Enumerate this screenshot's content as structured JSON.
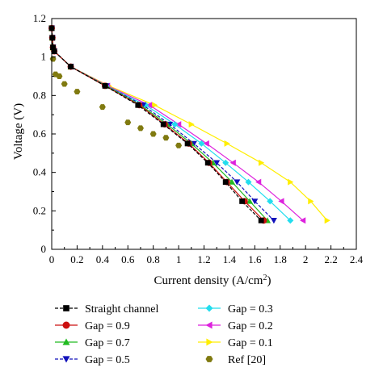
{
  "chart_data": {
    "type": "line",
    "xlabel": "Current density (A/cm",
    "xlabel_sup": "2",
    "xlabel_end": ")",
    "ylabel": "Voltage (V)",
    "xlim": [
      0,
      2.4
    ],
    "ylim": [
      0,
      1.2
    ],
    "xticks": [
      "0",
      "0.2",
      "0.4",
      "0.6",
      "0.8",
      "1",
      "1.2",
      "1.4",
      "1.6",
      "1.8",
      "2",
      "2.2",
      "2.4"
    ],
    "yticks": [
      "0",
      "0.2",
      "0.4",
      "0.6",
      "0.8",
      "1",
      "1.2"
    ],
    "grid": false,
    "legend_position": "below",
    "series": [
      {
        "name": "Straight channel",
        "color": "#000000",
        "marker": "square",
        "dashed": true,
        "x": [
          0,
          0.005,
          0.01,
          0.02,
          0.15,
          0.42,
          0.68,
          0.88,
          1.07,
          1.23,
          1.37,
          1.5,
          1.65
        ],
        "y": [
          1.15,
          1.1,
          1.05,
          1.03,
          0.95,
          0.85,
          0.75,
          0.65,
          0.55,
          0.45,
          0.35,
          0.25,
          0.15
        ]
      },
      {
        "name": "Gap = 0.9",
        "color": "#cc1111",
        "marker": "circle",
        "dashed": false,
        "x": [
          0,
          0.005,
          0.01,
          0.02,
          0.15,
          0.42,
          0.69,
          0.89,
          1.08,
          1.24,
          1.38,
          1.52,
          1.67
        ],
        "y": [
          1.15,
          1.1,
          1.05,
          1.03,
          0.95,
          0.85,
          0.75,
          0.65,
          0.55,
          0.45,
          0.35,
          0.25,
          0.15
        ]
      },
      {
        "name": "Gap = 0.7",
        "color": "#22bb22",
        "marker": "triangle-up",
        "dashed": false,
        "x": [
          0,
          0.005,
          0.01,
          0.02,
          0.15,
          0.43,
          0.7,
          0.91,
          1.1,
          1.27,
          1.42,
          1.56,
          1.7
        ],
        "y": [
          1.15,
          1.1,
          1.05,
          1.03,
          0.95,
          0.85,
          0.75,
          0.65,
          0.55,
          0.45,
          0.35,
          0.25,
          0.15
        ]
      },
      {
        "name": "Gap = 0.5",
        "color": "#1111bb",
        "marker": "triangle-down",
        "dashed": true,
        "x": [
          0,
          0.005,
          0.01,
          0.02,
          0.15,
          0.43,
          0.72,
          0.93,
          1.12,
          1.3,
          1.46,
          1.6,
          1.75
        ],
        "y": [
          1.15,
          1.1,
          1.05,
          1.03,
          0.95,
          0.85,
          0.75,
          0.65,
          0.55,
          0.45,
          0.35,
          0.25,
          0.15
        ]
      },
      {
        "name": "Gap = 0.3",
        "color": "#22ddee",
        "marker": "diamond",
        "dashed": false,
        "x": [
          0,
          0.005,
          0.01,
          0.02,
          0.15,
          0.43,
          0.74,
          0.97,
          1.18,
          1.37,
          1.55,
          1.72,
          1.88
        ],
        "y": [
          1.15,
          1.1,
          1.05,
          1.03,
          0.95,
          0.85,
          0.75,
          0.65,
          0.55,
          0.45,
          0.35,
          0.25,
          0.15
        ]
      },
      {
        "name": "Gap = 0.2",
        "color": "#dd22dd",
        "marker": "triangle-left",
        "dashed": false,
        "x": [
          0,
          0.005,
          0.01,
          0.02,
          0.15,
          0.44,
          0.77,
          1.0,
          1.22,
          1.43,
          1.63,
          1.81,
          1.98
        ],
        "y": [
          1.15,
          1.1,
          1.05,
          1.03,
          0.95,
          0.85,
          0.75,
          0.65,
          0.55,
          0.45,
          0.35,
          0.25,
          0.15
        ]
      },
      {
        "name": "Gap = 0.1",
        "color": "#ffee00",
        "marker": "triangle-right",
        "dashed": false,
        "x": [
          0,
          0.005,
          0.01,
          0.02,
          0.15,
          0.45,
          0.81,
          1.1,
          1.38,
          1.65,
          1.88,
          2.04,
          2.17
        ],
        "y": [
          1.15,
          1.1,
          1.05,
          1.03,
          0.95,
          0.85,
          0.75,
          0.65,
          0.55,
          0.45,
          0.35,
          0.25,
          0.15
        ]
      },
      {
        "name": "Ref [20]",
        "color": "#807a10",
        "marker": "hexagon",
        "dashed": false,
        "no_line": true,
        "x": [
          0.01,
          0.03,
          0.06,
          0.1,
          0.2,
          0.4,
          0.6,
          0.7,
          0.8,
          0.9,
          1.0
        ],
        "y": [
          0.99,
          0.91,
          0.9,
          0.86,
          0.82,
          0.74,
          0.66,
          0.63,
          0.6,
          0.58,
          0.54
        ]
      }
    ]
  }
}
